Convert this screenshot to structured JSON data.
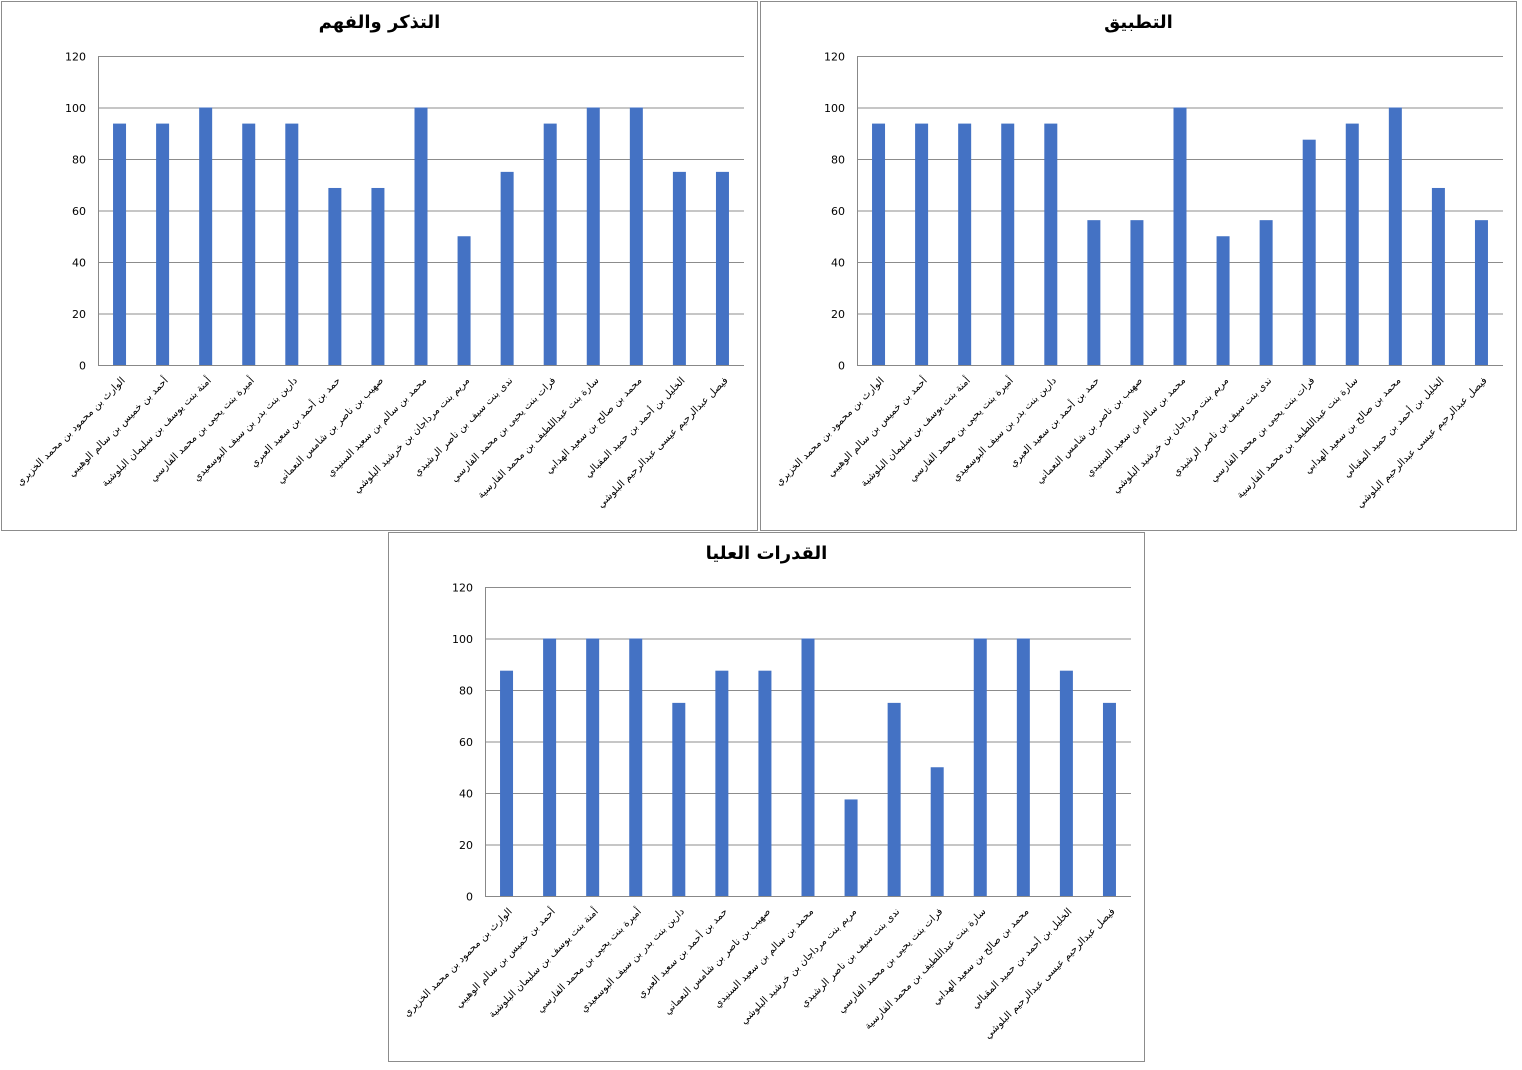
{
  "chart_data": [
    {
      "type": "bar",
      "title": "التذكر والفهم",
      "categories": [
        "الوارث بن محمود بن محمد الخزيري",
        "أحمد بن خميس بن سالم الوهيبي",
        "أمنة بنت يوسف بن سليمان البلوشية",
        "أميرة بنت يحيى بن محمد الفارسي",
        "دارين بنت بدر بن سيف البوسعيدي",
        "حمد بن أحمد بن سعيد العبري",
        "صهيب بن ناصر بن شامس النعماني",
        "محمد بن سالم بن سعيد السنيدي",
        "مريم بنت مرداجان بن خرشيد البلوشي",
        "ندى بنت سيف بن ناصر الرشيدي",
        "فرات بنت يحيى بن محمد الفارسي",
        "سارة بنت عبداللطيف بن محمد الفارسية",
        "محمد بن صالح بن سعيد الهدابي",
        "الخليل بن أحمد بن حميد المقبالي",
        "فيصل عبدالرحيم عيسى عبدالرحيم البلوشي"
      ],
      "values": [
        93.75,
        93.75,
        100,
        93.75,
        93.75,
        68.75,
        68.75,
        100,
        50,
        75,
        93.75,
        100,
        100,
        75,
        75
      ],
      "ylim": [
        0,
        120
      ],
      "yticks": [
        0,
        20,
        40,
        60,
        80,
        100,
        120
      ],
      "grid": true,
      "color": "#4472C4"
    },
    {
      "type": "bar",
      "title": "التطبيق",
      "categories": [
        "الوارث بن محمود بن محمد الخزيري",
        "أحمد بن خميس بن سالم الوهيبي",
        "أمنة بنت يوسف بن سليمان البلوشية",
        "أميرة بنت يحيى بن محمد الفارسي",
        "دارين بنت بدر بن سيف البوسعيدي",
        "حمد بن أحمد بن سعيد العبري",
        "صهيب بن ناصر بن شامس النعماني",
        "محمد بن سالم بن سعيد السنيدي",
        "مريم بنت مرداجان بن خرشيد البلوشي",
        "ندى بنت سيف بن ناصر الرشيدي",
        "فرات بنت يحيى بن محمد الفارسي",
        "سارة بنت عبداللطيف بن محمد الفارسية",
        "محمد بن صالح بن سعيد الهدابي",
        "الخليل بن أحمد بن حميد المقبالي",
        "فيصل عبدالرحيم عيسى عبدالرحيم البلوشي"
      ],
      "values": [
        93.75,
        93.75,
        93.75,
        93.75,
        93.75,
        56.25,
        56.25,
        100,
        50,
        56.25,
        87.5,
        93.75,
        100,
        68.75,
        56.25
      ],
      "ylim": [
        0,
        120
      ],
      "yticks": [
        0,
        20,
        40,
        60,
        80,
        100,
        120
      ],
      "grid": true,
      "color": "#4472C4"
    },
    {
      "type": "bar",
      "title": "القدرات العليا",
      "categories": [
        "الوارث بن محمود بن محمد الخزيري",
        "أحمد بن خميس بن سالم الوهيبي",
        "أمنة بنت يوسف بن سليمان البلوشية",
        "أميرة بنت يحيى بن محمد الفارسي",
        "دارين بنت بدر بن سيف البوسعيدي",
        "حمد بن أحمد بن سعيد العبري",
        "صهيب بن ناصر بن شامس النعماني",
        "محمد بن سالم بن سعيد السنيدي",
        "مريم بنت مرداجان بن خرشيد البلوشي",
        "ندى بنت سيف بن ناصر الرشيدي",
        "فرات بنت يحيى بن محمد الفارسي",
        "سارة بنت عبداللطيف بن محمد الفارسية",
        "محمد بن صالح بن سعيد الهدابي",
        "الخليل بن أحمد بن حميد المقبالي",
        "فيصل عبدالرحيم عيسى عبدالرحيم البلوشي"
      ],
      "values": [
        87.5,
        100,
        100,
        100,
        75,
        87.5,
        87.5,
        100,
        37.5,
        75,
        50,
        100,
        100,
        87.5,
        75
      ],
      "ylim": [
        0,
        120
      ],
      "yticks": [
        0,
        20,
        40,
        60,
        80,
        100,
        120
      ],
      "grid": true,
      "color": "#4472C4"
    }
  ]
}
